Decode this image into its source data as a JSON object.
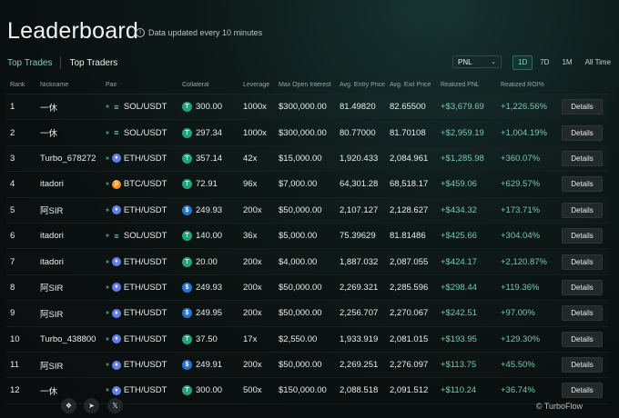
{
  "header": {
    "title": "Leaderboard",
    "updated_note": "Data updated every 10 minutes"
  },
  "tabs": [
    {
      "label": "Top Trades",
      "active": true
    },
    {
      "label": "Top Traders",
      "active": false
    }
  ],
  "sort_select": {
    "value": "PNL"
  },
  "periods": [
    {
      "label": "1D",
      "active": true
    },
    {
      "label": "7D",
      "active": false
    },
    {
      "label": "1M",
      "active": false
    },
    {
      "label": "All Time",
      "active": false
    }
  ],
  "columns": [
    "Rank",
    "Nickname",
    "Pair",
    "Collateral",
    "Leverage",
    "Max Open Interest",
    "Avg. Entry Price",
    "Avg. Exit Price",
    "Realized PNL",
    "Realized ROI%",
    ""
  ],
  "rows": [
    {
      "rank": "1",
      "nickname": "一休",
      "coin": "sol",
      "pair": "SOL/USDT",
      "token": "usdt",
      "collateral": "300.00",
      "leverage": "1000x",
      "max_oi": "$300,000.00",
      "entry": "81.49820",
      "exit": "82.65500",
      "pnl": "+$3,679.69",
      "roi": "+1,226.56%",
      "action": "Details"
    },
    {
      "rank": "2",
      "nickname": "一休",
      "coin": "sol",
      "pair": "SOL/USDT",
      "token": "usdt",
      "collateral": "297.34",
      "leverage": "1000x",
      "max_oi": "$300,000.00",
      "entry": "80.77000",
      "exit": "81.70108",
      "pnl": "+$2,959.19",
      "roi": "+1,004.19%",
      "action": "Details"
    },
    {
      "rank": "3",
      "nickname": "Turbo_678272",
      "coin": "eth",
      "pair": "ETH/USDT",
      "token": "usdt",
      "collateral": "357.14",
      "leverage": "42x",
      "max_oi": "$15,000.00",
      "entry": "1,920.433",
      "exit": "2,084.961",
      "pnl": "+$1,285.98",
      "roi": "+360.07%",
      "action": "Details"
    },
    {
      "rank": "4",
      "nickname": "itadori",
      "coin": "btc",
      "pair": "BTC/USDT",
      "token": "usdt",
      "collateral": "72.91",
      "leverage": "96x",
      "max_oi": "$7,000.00",
      "entry": "64,301.28",
      "exit": "68,518.17",
      "pnl": "+$459.06",
      "roi": "+629.57%",
      "action": "Details"
    },
    {
      "rank": "5",
      "nickname": "阿SIR",
      "coin": "eth",
      "pair": "ETH/USDT",
      "token": "usdc",
      "collateral": "249.93",
      "leverage": "200x",
      "max_oi": "$50,000.00",
      "entry": "2,107.127",
      "exit": "2,128.627",
      "pnl": "+$434.32",
      "roi": "+173.71%",
      "action": "Details"
    },
    {
      "rank": "6",
      "nickname": "itadori",
      "coin": "sol",
      "pair": "SOL/USDT",
      "token": "usdt",
      "collateral": "140.00",
      "leverage": "36x",
      "max_oi": "$5,000.00",
      "entry": "75.39629",
      "exit": "81.81486",
      "pnl": "+$425.66",
      "roi": "+304.04%",
      "action": "Details"
    },
    {
      "rank": "7",
      "nickname": "itadori",
      "coin": "eth",
      "pair": "ETH/USDT",
      "token": "usdt",
      "collateral": "20.00",
      "leverage": "200x",
      "max_oi": "$4,000.00",
      "entry": "1,887.032",
      "exit": "2,087.055",
      "pnl": "+$424.17",
      "roi": "+2,120.87%",
      "action": "Details"
    },
    {
      "rank": "8",
      "nickname": "阿SIR",
      "coin": "eth",
      "pair": "ETH/USDT",
      "token": "usdc",
      "collateral": "249.93",
      "leverage": "200x",
      "max_oi": "$50,000.00",
      "entry": "2,269.321",
      "exit": "2,285.596",
      "pnl": "+$298.44",
      "roi": "+119.36%",
      "action": "Details"
    },
    {
      "rank": "9",
      "nickname": "阿SIR",
      "coin": "eth",
      "pair": "ETH/USDT",
      "token": "usdc",
      "collateral": "249.95",
      "leverage": "200x",
      "max_oi": "$50,000.00",
      "entry": "2,256.707",
      "exit": "2,270.067",
      "pnl": "+$242.51",
      "roi": "+97.00%",
      "action": "Details"
    },
    {
      "rank": "10",
      "nickname": "Turbo_438800",
      "coin": "eth",
      "pair": "ETH/USDT",
      "token": "usdt",
      "collateral": "37.50",
      "leverage": "17x",
      "max_oi": "$2,550.00",
      "entry": "1,933.919",
      "exit": "2,081.015",
      "pnl": "+$193.95",
      "roi": "+129.30%",
      "action": "Details"
    },
    {
      "rank": "11",
      "nickname": "阿SIR",
      "coin": "eth",
      "pair": "ETH/USDT",
      "token": "usdc",
      "collateral": "249.91",
      "leverage": "200x",
      "max_oi": "$50,000.00",
      "entry": "2,269.251",
      "exit": "2,276.097",
      "pnl": "+$113.75",
      "roi": "+45.50%",
      "action": "Details"
    },
    {
      "rank": "12",
      "nickname": "一休",
      "coin": "eth",
      "pair": "ETH/USDT",
      "token": "usdt",
      "collateral": "300.00",
      "leverage": "500x",
      "max_oi": "$150,000.00",
      "entry": "2,088.518",
      "exit": "2,091.512",
      "pnl": "+$110.24",
      "roi": "+36.74%",
      "action": "Details"
    }
  ],
  "footer": {
    "social": [
      {
        "name": "gitbook-icon",
        "glyph": "❖"
      },
      {
        "name": "telegram-icon",
        "glyph": "➤"
      },
      {
        "name": "x-icon",
        "glyph": "𝕏"
      }
    ],
    "copyright": "© TurboFlow"
  }
}
